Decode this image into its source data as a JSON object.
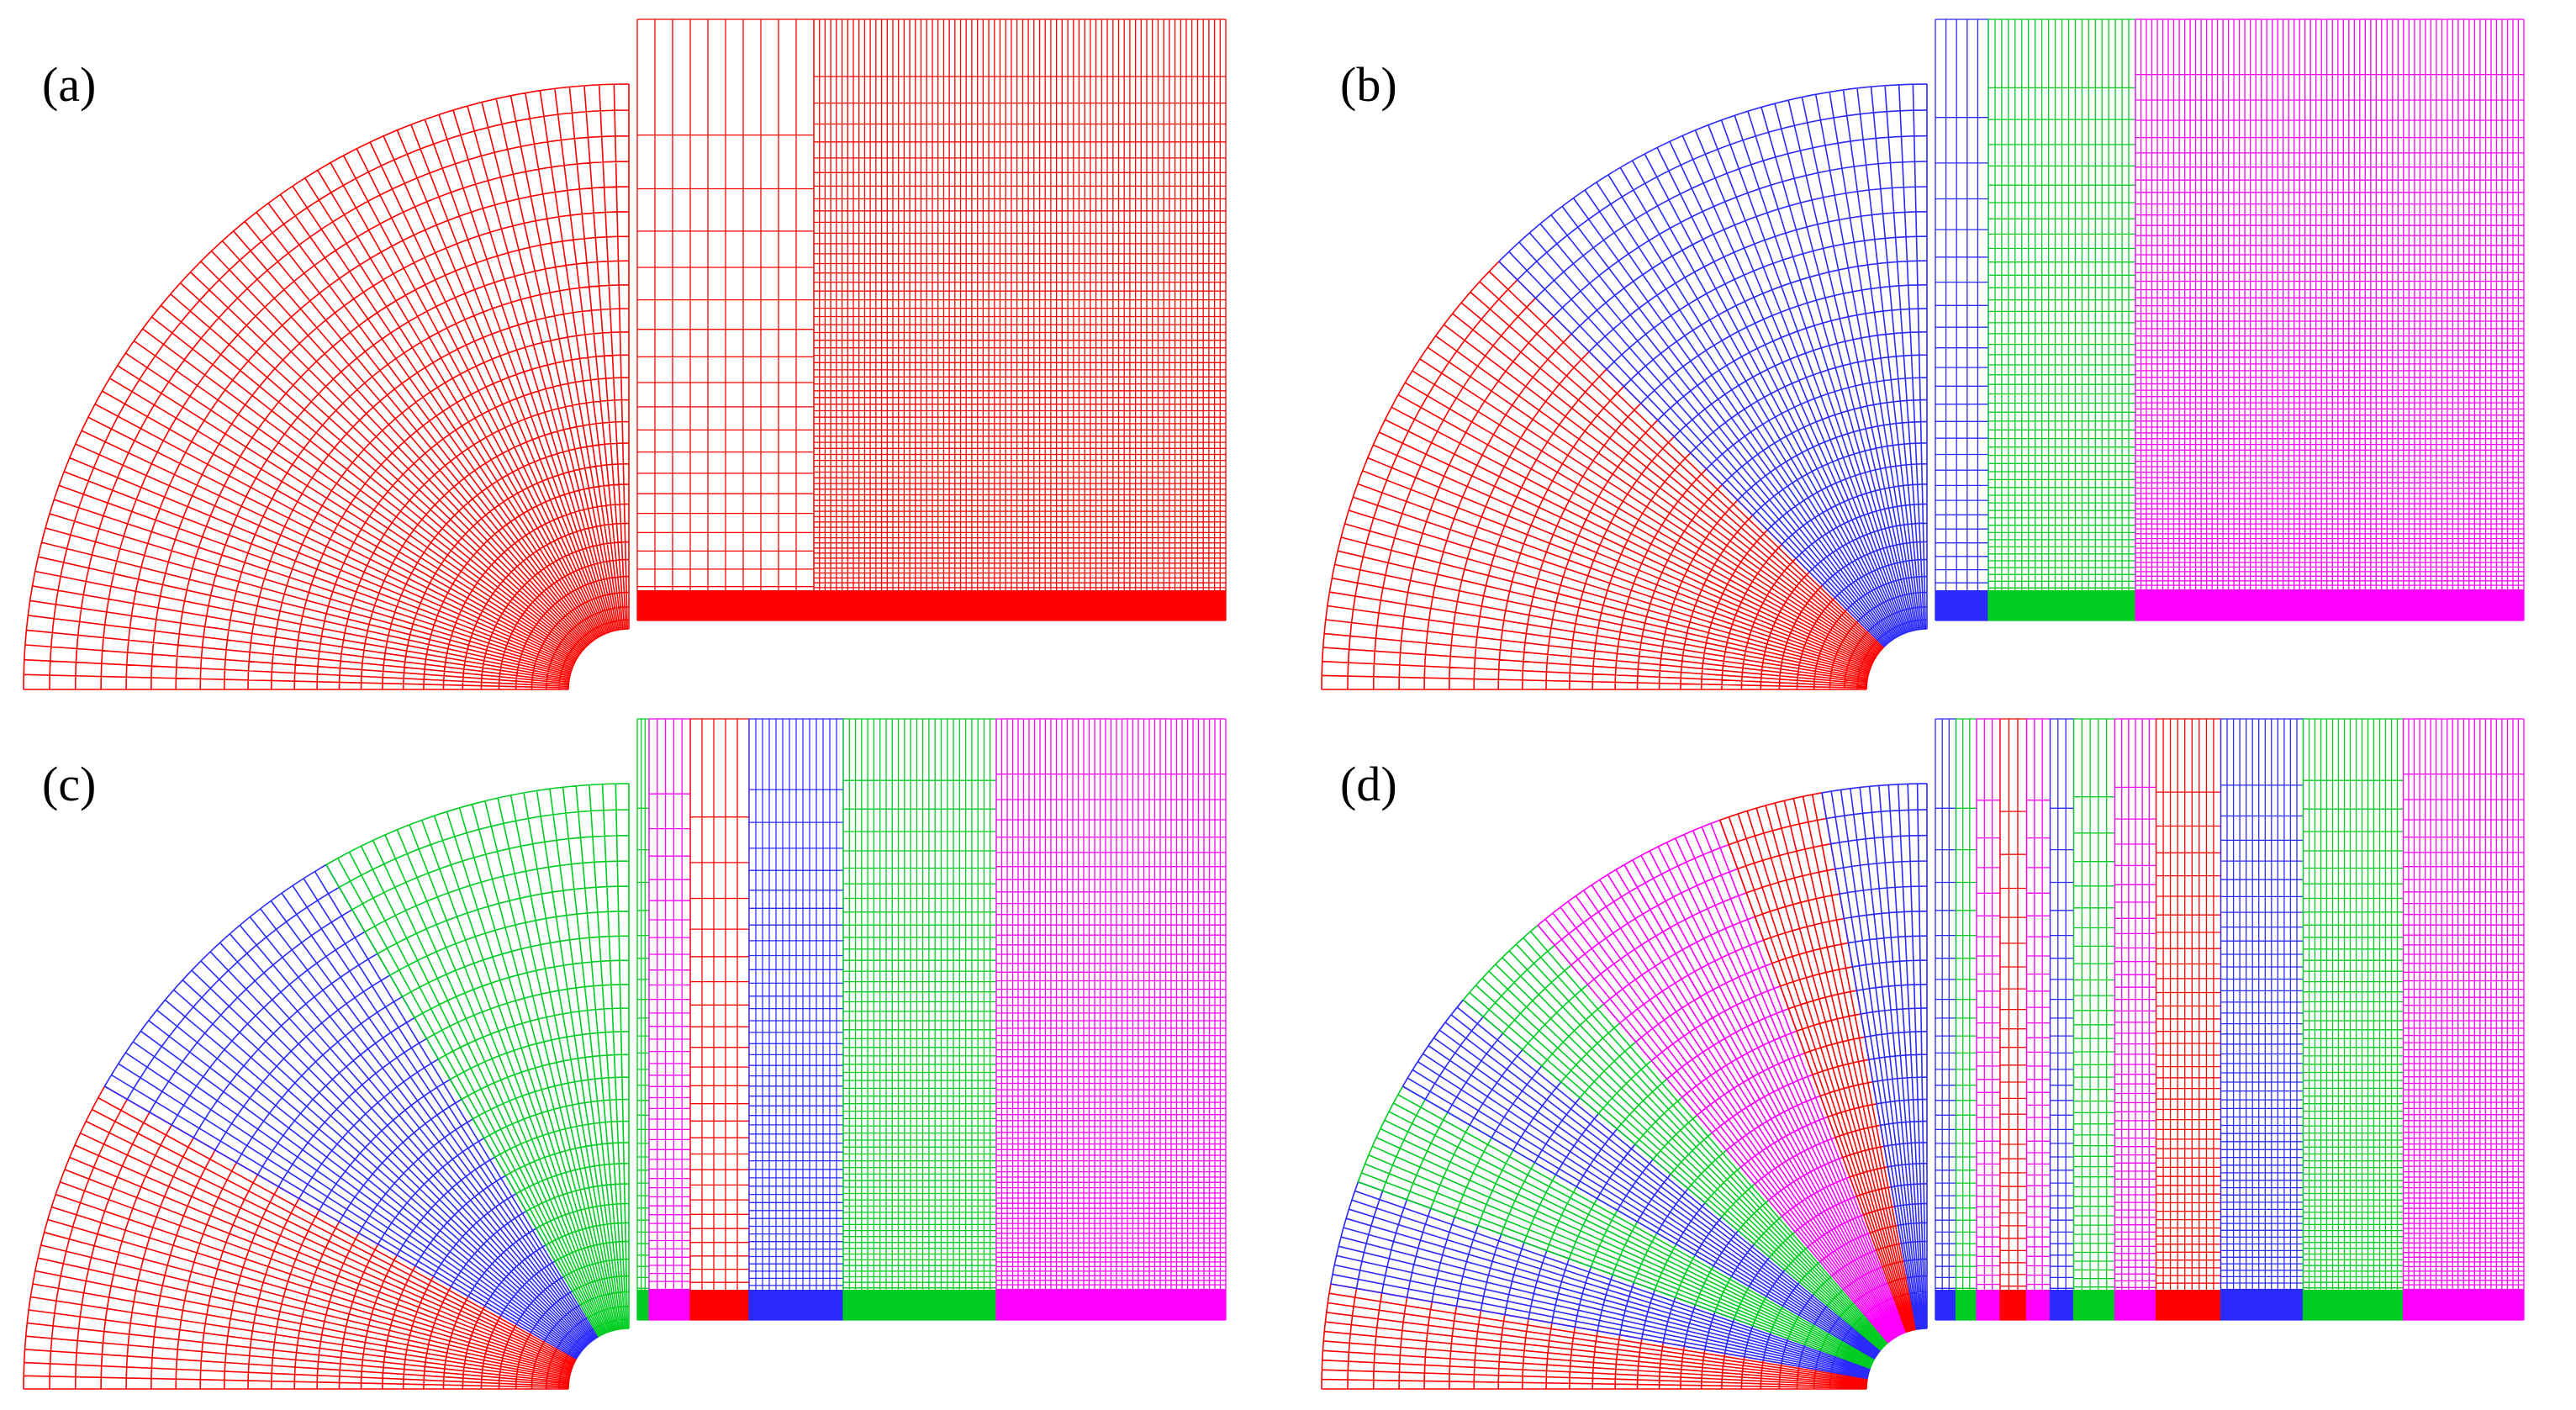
{
  "colors": {
    "red": "#ff0000",
    "blue": "#2a2aff",
    "green": "#00cc22",
    "magenta": "#ff00ff",
    "background": "#ffffff"
  },
  "panels": [
    {
      "label": "(a)",
      "wedges": [
        "red"
      ],
      "strips": [
        {
          "color": "red",
          "width": 0.3,
          "density": 0.35
        },
        {
          "color": "red",
          "width": 0.7,
          "density": 2.2
        }
      ]
    },
    {
      "label": "(b)",
      "wedges": [
        "red",
        "blue"
      ],
      "strips": [
        {
          "color": "blue",
          "width": 0.09,
          "density": 0.6
        },
        {
          "color": "green",
          "width": 0.25,
          "density": 1.5
        },
        {
          "color": "magenta",
          "width": 0.66,
          "density": 2.4
        }
      ]
    },
    {
      "label": "(c)",
      "wedges": [
        "red",
        "blue",
        "green"
      ],
      "strips": [
        {
          "color": "green",
          "width": 0.02,
          "density": 0.8
        },
        {
          "color": "magenta",
          "width": 0.07,
          "density": 1.2
        },
        {
          "color": "red",
          "width": 0.1,
          "density": 0.6
        },
        {
          "color": "blue",
          "width": 0.16,
          "density": 1.4
        },
        {
          "color": "green",
          "width": 0.26,
          "density": 1.9
        },
        {
          "color": "magenta",
          "width": 0.39,
          "density": 2.4
        }
      ]
    },
    {
      "label": "(d)",
      "wedges": [
        "red",
        "blue",
        "green",
        "blue",
        "green",
        "magenta",
        "magenta",
        "red",
        "blue"
      ],
      "strips": [
        {
          "color": "blue",
          "width": 0.035,
          "density": 0.8
        },
        {
          "color": "green",
          "width": 0.035,
          "density": 0.8
        },
        {
          "color": "magenta",
          "width": 0.04,
          "density": 1.0
        },
        {
          "color": "red",
          "width": 0.045,
          "density": 0.7
        },
        {
          "color": "magenta",
          "width": 0.04,
          "density": 1.0
        },
        {
          "color": "blue",
          "width": 0.04,
          "density": 0.8
        },
        {
          "color": "green",
          "width": 0.07,
          "density": 1.1
        },
        {
          "color": "magenta",
          "width": 0.07,
          "density": 1.5
        },
        {
          "color": "red",
          "width": 0.11,
          "density": 1.3
        },
        {
          "color": "blue",
          "width": 0.14,
          "density": 1.6
        },
        {
          "color": "green",
          "width": 0.17,
          "density": 1.9
        },
        {
          "color": "magenta",
          "width": 0.205,
          "density": 2.4
        }
      ]
    }
  ]
}
